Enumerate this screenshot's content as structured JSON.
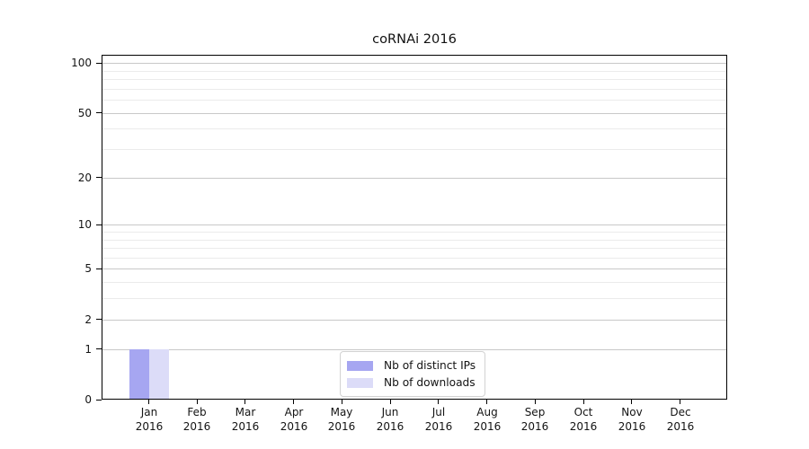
{
  "title": "coRNAi 2016",
  "chart_data": {
    "type": "bar",
    "title": "coRNAi 2016",
    "yscale": "log1p",
    "categories": [
      "Jan",
      "Feb",
      "Mar",
      "Apr",
      "May",
      "Jun",
      "Jul",
      "Aug",
      "Sep",
      "Oct",
      "Nov",
      "Dec"
    ],
    "year_label": "2016",
    "series": [
      {
        "name": "Nb of distinct IPs",
        "color": "#a6a6f1",
        "values": [
          1,
          0,
          0,
          0,
          0,
          0,
          0,
          0,
          0,
          0,
          0,
          0
        ]
      },
      {
        "name": "Nb of downloads",
        "color": "#dcdcf8",
        "values": [
          1,
          0,
          0,
          0,
          0,
          0,
          0,
          0,
          0,
          0,
          0,
          0
        ]
      }
    ],
    "yticks": [
      0,
      1,
      2,
      5,
      10,
      20,
      50,
      100
    ],
    "minor_yticks": [
      3,
      4,
      6,
      7,
      8,
      9,
      30,
      40,
      60,
      70,
      80,
      90
    ],
    "ylim": [
      0,
      112
    ],
    "xlabel": "",
    "ylabel": "",
    "grid": "horizontal",
    "legend_position": "lower center",
    "colors": {
      "major_grid": "#c8c8c8",
      "minor_grid": "#ebebeb",
      "axis": "#000000",
      "text": "#141414"
    }
  }
}
